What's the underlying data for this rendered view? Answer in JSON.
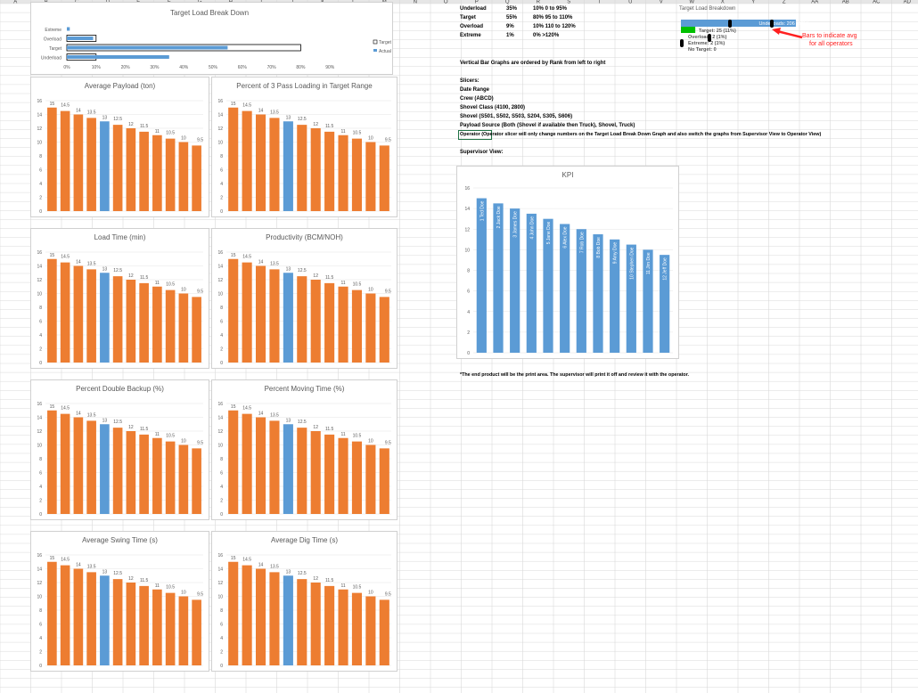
{
  "columns": [
    "A",
    "B",
    "C",
    "D",
    "E",
    "F",
    "G",
    "H",
    "I",
    "J",
    "K",
    "L",
    "M",
    "N",
    "O",
    "P",
    "Q",
    "R",
    "S",
    "T",
    "U",
    "V",
    "W",
    "X",
    "Y",
    "Z",
    "AA",
    "AB",
    "AC",
    "AD",
    "AE",
    "AF"
  ],
  "colors": {
    "orange": "#ED7D31",
    "blue": "#5B9BD5",
    "grid": "#d9d9d9",
    "green": "#00c000",
    "red": "#ff2020"
  },
  "load_table": {
    "rows": [
      {
        "label": "Underload",
        "pct": "35%",
        "range": "10% 0 to 95%"
      },
      {
        "label": "Target",
        "pct": "55%",
        "range": "80% 95 to 110%"
      },
      {
        "label": "Overload",
        "pct": "9%",
        "range": "10% 110 to 120%"
      },
      {
        "label": "Extreme",
        "pct": "1%",
        "range": "0% >120%"
      }
    ]
  },
  "notes": {
    "sort_note": "Vertical Bar Graphs are ordered by Rank from left to right",
    "slicers_title": "Slicers:",
    "slicers": [
      "Date Range",
      "Crew (ABCD)",
      "Shovel Class (4100, 2800)",
      "Shovel (S501, S502, S503, S204, S305, S606)",
      "Payload Source (Both (Shovel if available then Truck), Shovel, Truck)",
      "Operator (Operator slicer will only change numbers on the Target Load Break Down Graph and also switch the graphs from Supervisor View to Operator View)"
    ],
    "supervisor_view": "Supervisor View:",
    "footer": "*The end product will be the print area. The supervisor will print it off and review it with the operator."
  },
  "annotation": {
    "text_line1": "Bars to indicate avg",
    "text_line2": "for all operators"
  },
  "chart_data": [
    {
      "type": "bar",
      "orientation": "horizontal",
      "title": "Target Load Break Down",
      "categories": [
        "Extreme",
        "Overload",
        "Target",
        "Underload"
      ],
      "series": [
        {
          "name": "Target",
          "values": [
            0,
            10,
            80,
            10
          ]
        },
        {
          "name": "Actual",
          "values": [
            1,
            9,
            55,
            35
          ]
        }
      ],
      "xlim": [
        0,
        100
      ],
      "xticks": [
        "0%",
        "10%",
        "20%",
        "30%",
        "40%",
        "50%",
        "60%",
        "70%",
        "80%",
        "90%"
      ],
      "legend": "right"
    },
    {
      "type": "bar",
      "title": "Average Payload (ton)",
      "values": [
        15,
        14.5,
        14,
        13.5,
        13,
        12.5,
        12,
        11.5,
        11,
        10.5,
        10,
        9.5
      ],
      "highlight_index": 4,
      "ylim": [
        0,
        16
      ],
      "yticks": [
        "0",
        "2",
        "4",
        "6",
        "8",
        "10",
        "12",
        "14",
        "16"
      ]
    },
    {
      "type": "bar",
      "title": "Percent of 3 Pass Loading in Target Range",
      "values": [
        15,
        14.5,
        14,
        13.5,
        13,
        12.5,
        12,
        11.5,
        11,
        10.5,
        10,
        9.5
      ],
      "highlight_index": 4,
      "ylim": [
        0,
        16
      ],
      "yticks": [
        "0",
        "2",
        "4",
        "6",
        "8",
        "10",
        "12",
        "14",
        "16"
      ]
    },
    {
      "type": "bar",
      "title": "Load Time (min)",
      "values": [
        15,
        14.5,
        14,
        13.5,
        13,
        12.5,
        12,
        11.5,
        11,
        10.5,
        10,
        9.5
      ],
      "highlight_index": 4,
      "ylim": [
        0,
        16
      ],
      "yticks": [
        "0",
        "2",
        "4",
        "6",
        "8",
        "10",
        "12",
        "14",
        "16"
      ]
    },
    {
      "type": "bar",
      "title": "Productivity (BCM/NOH)",
      "values": [
        15,
        14.5,
        14,
        13.5,
        13,
        12.5,
        12,
        11.5,
        11,
        10.5,
        10,
        9.5
      ],
      "highlight_index": 4,
      "ylim": [
        0,
        16
      ],
      "yticks": [
        "0",
        "2",
        "4",
        "6",
        "8",
        "10",
        "12",
        "14",
        "16"
      ]
    },
    {
      "type": "bar",
      "title": "Percent Double Backup (%)",
      "values": [
        15,
        14.5,
        14,
        13.5,
        13,
        12.5,
        12,
        11.5,
        11,
        10.5,
        10,
        9.5
      ],
      "highlight_index": 4,
      "ylim": [
        0,
        16
      ],
      "yticks": [
        "0",
        "2",
        "4",
        "6",
        "8",
        "10",
        "12",
        "14",
        "16"
      ]
    },
    {
      "type": "bar",
      "title": "Percent Moving Time (%)",
      "values": [
        15,
        14.5,
        14,
        13.5,
        13,
        12.5,
        12,
        11.5,
        11,
        10.5,
        10,
        9.5
      ],
      "highlight_index": 4,
      "ylim": [
        0,
        16
      ],
      "yticks": [
        "0",
        "2",
        "4",
        "6",
        "8",
        "10",
        "12",
        "14",
        "16"
      ]
    },
    {
      "type": "bar",
      "title": "Average Swing Time (s)",
      "values": [
        15,
        14.5,
        14,
        13.5,
        13,
        12.5,
        12,
        11.5,
        11,
        10.5,
        10,
        9.5
      ],
      "highlight_index": 4,
      "ylim": [
        0,
        16
      ],
      "yticks": [
        "0",
        "2",
        "4",
        "6",
        "8",
        "10",
        "12",
        "14",
        "16"
      ]
    },
    {
      "type": "bar",
      "title": "Average Dig Time (s)",
      "values": [
        15,
        14.5,
        14,
        13.5,
        13,
        12.5,
        12,
        11.5,
        11,
        10.5,
        10,
        9.5
      ],
      "highlight_index": 4,
      "ylim": [
        0,
        16
      ],
      "yticks": [
        "0",
        "2",
        "4",
        "6",
        "8",
        "10",
        "12",
        "14",
        "16"
      ]
    },
    {
      "type": "bar",
      "title": "KPI",
      "categories": [
        "1 Ted Doe",
        "2 Jack Doe",
        "3 James Doe",
        "4 John Doe",
        "5 Jane Doe",
        "6 Alex Doe",
        "7 Rob Doe",
        "8 Bob Doe",
        "9 Amy Doe",
        "10 Stephen Doe",
        "11 Jim Doe",
        "12 Jeff Doe"
      ],
      "values": [
        15,
        14.5,
        14,
        13.5,
        13,
        12.5,
        12,
        11.5,
        11,
        10.5,
        10,
        9.5
      ],
      "ylim": [
        0,
        16
      ],
      "yticks": [
        "0",
        "2",
        "4",
        "6",
        "8",
        "10",
        "12",
        "14",
        "16"
      ]
    },
    {
      "type": "bar",
      "orientation": "horizontal",
      "stacked": true,
      "title": "Target Load Breakdown",
      "segments": [
        {
          "name": "Underloads",
          "label": "Underloads: 206 (88%)",
          "value": 88
        },
        {
          "name": "Target",
          "label": "Target: 25 (11%)",
          "value": 11
        },
        {
          "name": "Overload",
          "label": "Overload: 2 (1%)",
          "value": 1
        },
        {
          "name": "Extreme",
          "label": "Extreme: 2 (1%)",
          "value": 1
        },
        {
          "name": "No Target",
          "label": "No Target: 0",
          "value": 0
        }
      ]
    }
  ]
}
